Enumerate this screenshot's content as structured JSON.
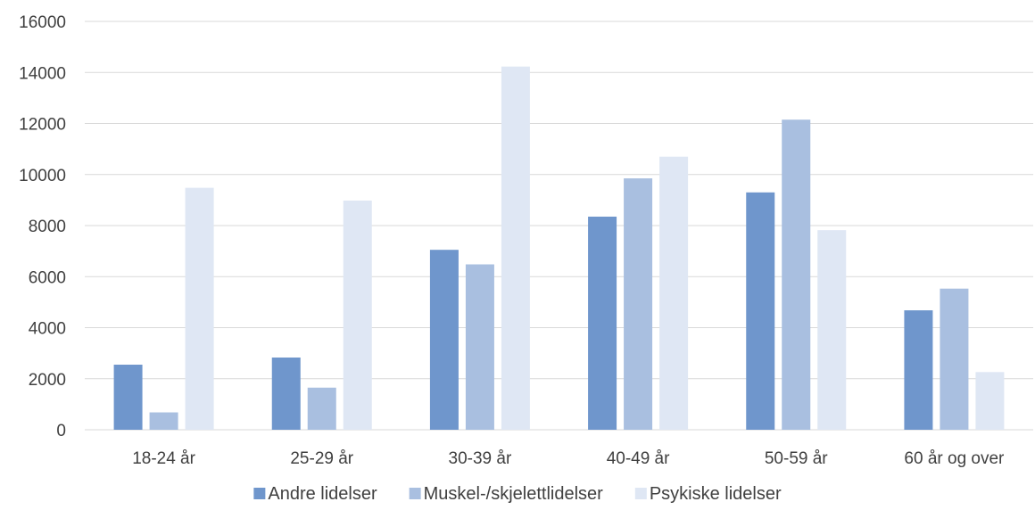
{
  "chart_data": {
    "type": "bar",
    "title": "",
    "xlabel": "",
    "ylabel": "",
    "ylim": [
      0,
      16000
    ],
    "yticks": [
      0,
      2000,
      4000,
      6000,
      8000,
      10000,
      12000,
      14000,
      16000
    ],
    "grid": true,
    "legend_position": "bottom",
    "categories": [
      "18-24 år",
      "25-29 år",
      "30-39 år",
      "40-49 år",
      "50-59 år",
      "60 år og over"
    ],
    "series": [
      {
        "name": "Andre lidelser",
        "color": "#6f96cc",
        "values": [
          2550,
          2830,
          7050,
          8350,
          9300,
          4680
        ]
      },
      {
        "name": "Muskel-/skjelettlidelser",
        "color": "#a9bfe0",
        "values": [
          680,
          1650,
          6480,
          9850,
          12150,
          5530
        ]
      },
      {
        "name": "Psykiske lidelser",
        "color": "#dfe7f4",
        "values": [
          9480,
          8980,
          14230,
          10700,
          7820,
          2260
        ]
      }
    ]
  }
}
